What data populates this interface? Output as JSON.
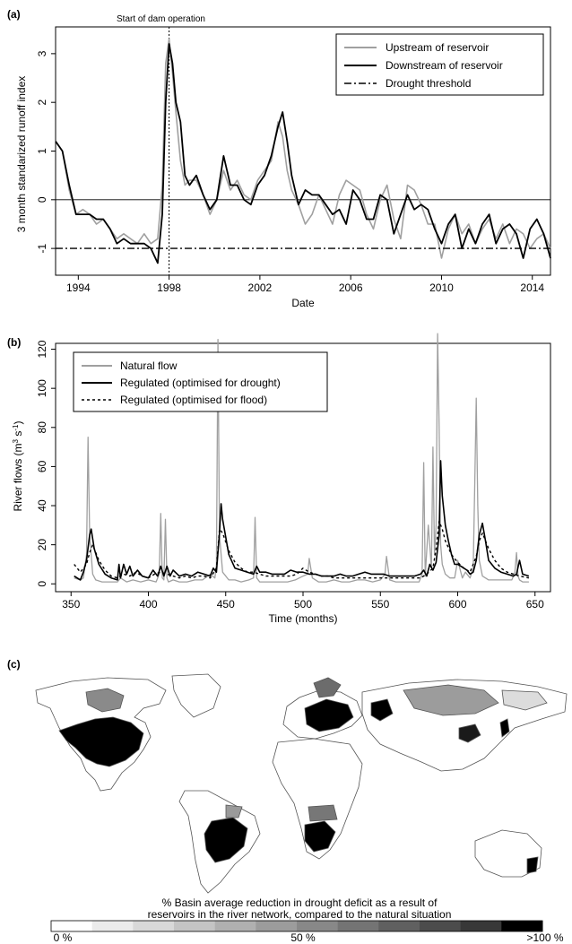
{
  "chart_data": [
    {
      "panel_label": "(a)",
      "type": "line",
      "annotation": "Start of dam operation",
      "annotation_x": 1998.0,
      "xlabel": "Date",
      "ylabel": "3 month standarized  runoff index",
      "xlim": [
        1993.0,
        2014.8
      ],
      "ylim": [
        -1.55,
        3.55
      ],
      "x_ticks": [
        1994,
        1998,
        2002,
        2006,
        2010,
        2014
      ],
      "y_ticks": [
        -1,
        0,
        1,
        2,
        3
      ],
      "grid": false,
      "legend_position": "top-right",
      "hline": 0,
      "threshold": -1,
      "series": [
        {
          "name": "Upstream of reservoir",
          "color": "#a0a0a0",
          "x": [
            1993.0,
            1993.3,
            1993.6,
            1993.9,
            1994.2,
            1994.5,
            1994.8,
            1995.1,
            1995.4,
            1995.7,
            1996.0,
            1996.3,
            1996.6,
            1996.9,
            1997.2,
            1997.5,
            1997.7,
            1997.85,
            1998.0,
            1998.15,
            1998.3,
            1998.5,
            1998.7,
            1998.9,
            1999.2,
            1999.5,
            1999.8,
            2000.1,
            2000.4,
            2000.7,
            2001.0,
            2001.3,
            2001.6,
            2001.9,
            2002.2,
            2002.5,
            2002.8,
            2003.0,
            2003.2,
            2003.4,
            2003.7,
            2004.0,
            2004.3,
            2004.6,
            2004.9,
            2005.2,
            2005.5,
            2005.8,
            2006.1,
            2006.4,
            2006.7,
            2007.0,
            2007.3,
            2007.6,
            2007.9,
            2008.2,
            2008.5,
            2008.8,
            2009.1,
            2009.4,
            2009.7,
            2010.0,
            2010.3,
            2010.6,
            2010.9,
            2011.2,
            2011.5,
            2011.8,
            2012.1,
            2012.4,
            2012.7,
            2013.0,
            2013.3,
            2013.6,
            2013.9,
            2014.2,
            2014.5,
            2014.8
          ],
          "values": [
            1.2,
            1.0,
            0.2,
            -0.3,
            -0.2,
            -0.3,
            -0.5,
            -0.4,
            -0.6,
            -0.8,
            -0.7,
            -0.8,
            -0.9,
            -0.7,
            -0.9,
            -0.8,
            0.3,
            2.8,
            3.3,
            2.6,
            1.8,
            0.8,
            0.3,
            0.4,
            0.4,
            0.1,
            -0.3,
            0.0,
            0.6,
            0.2,
            0.4,
            0.1,
            0.0,
            0.4,
            0.6,
            0.8,
            1.6,
            1.3,
            0.6,
            0.2,
            -0.1,
            -0.5,
            -0.3,
            0.1,
            -0.2,
            -0.5,
            0.1,
            0.4,
            0.3,
            0.2,
            -0.3,
            -0.6,
            0.0,
            0.3,
            -0.4,
            -0.8,
            0.3,
            0.2,
            -0.1,
            -0.5,
            -0.5,
            -1.2,
            -0.6,
            -0.3,
            -0.7,
            -0.5,
            -0.9,
            -0.6,
            -0.4,
            -0.8,
            -0.5,
            -0.9,
            -0.6,
            -0.7,
            -1.0,
            -0.8,
            -0.7,
            -1.0
          ]
        },
        {
          "name": "Downstream of reservoir",
          "color": "#000000",
          "x": [
            1993.0,
            1993.3,
            1993.6,
            1993.9,
            1994.2,
            1994.5,
            1994.8,
            1995.1,
            1995.4,
            1995.7,
            1996.0,
            1996.3,
            1996.6,
            1996.9,
            1997.2,
            1997.5,
            1997.7,
            1997.85,
            1998.0,
            1998.15,
            1998.3,
            1998.5,
            1998.7,
            1998.9,
            1999.2,
            1999.5,
            1999.8,
            2000.1,
            2000.4,
            2000.7,
            2001.0,
            2001.3,
            2001.6,
            2001.9,
            2002.2,
            2002.5,
            2002.8,
            2003.0,
            2003.2,
            2003.4,
            2003.7,
            2004.0,
            2004.3,
            2004.6,
            2004.9,
            2005.2,
            2005.5,
            2005.8,
            2006.1,
            2006.4,
            2006.7,
            2007.0,
            2007.3,
            2007.6,
            2007.9,
            2008.2,
            2008.5,
            2008.8,
            2009.1,
            2009.4,
            2009.7,
            2010.0,
            2010.3,
            2010.6,
            2010.9,
            2011.2,
            2011.5,
            2011.8,
            2012.1,
            2012.4,
            2012.7,
            2013.0,
            2013.3,
            2013.6,
            2013.9,
            2014.2,
            2014.5,
            2014.8
          ],
          "values": [
            1.2,
            1.0,
            0.3,
            -0.3,
            -0.3,
            -0.3,
            -0.4,
            -0.4,
            -0.6,
            -0.9,
            -0.8,
            -0.9,
            -0.9,
            -0.9,
            -1.0,
            -1.3,
            -0.3,
            2.0,
            3.2,
            2.8,
            2.0,
            1.6,
            0.5,
            0.3,
            0.5,
            0.1,
            -0.2,
            0.0,
            0.9,
            0.3,
            0.3,
            0.0,
            -0.1,
            0.3,
            0.5,
            0.9,
            1.5,
            1.8,
            1.2,
            0.5,
            -0.1,
            0.2,
            0.1,
            0.1,
            -0.1,
            -0.3,
            -0.2,
            -0.5,
            0.2,
            0.0,
            -0.4,
            -0.4,
            0.1,
            0.0,
            -0.7,
            -0.3,
            0.1,
            -0.2,
            -0.1,
            -0.2,
            -0.6,
            -0.9,
            -0.5,
            -0.3,
            -1.0,
            -0.6,
            -0.9,
            -0.5,
            -0.3,
            -0.9,
            -0.6,
            -0.5,
            -0.7,
            -1.2,
            -0.6,
            -0.4,
            -0.7,
            -1.2
          ]
        },
        {
          "name": "Drought threshold",
          "color": "#000000",
          "x": [
            1993.0,
            2014.8
          ],
          "values": [
            -1,
            -1
          ]
        }
      ]
    },
    {
      "panel_label": "(b)",
      "type": "line",
      "xlabel": "Time (months)",
      "ylabel_main": "River flows (m",
      "ylabel_sup1": "3",
      "ylabel_mid": " s",
      "ylabel_sup2": "-1",
      "ylabel_end": ")",
      "xlim": [
        340,
        660
      ],
      "ylim": [
        -4,
        123
      ],
      "x_ticks": [
        350,
        400,
        450,
        500,
        550,
        600,
        650
      ],
      "y_ticks": [
        0,
        20,
        40,
        60,
        80,
        100,
        120
      ],
      "grid": false,
      "legend_position": "top-left",
      "series": [
        {
          "name": "Natural flow",
          "color": "#a0a0a0",
          "x": [
            352,
            356,
            358,
            360,
            361,
            362,
            364,
            366,
            370,
            375,
            380,
            382,
            384,
            386,
            390,
            395,
            400,
            405,
            407,
            408,
            409,
            410,
            411,
            412,
            413,
            416,
            420,
            425,
            430,
            435,
            440,
            443,
            444,
            445,
            446,
            448,
            452,
            456,
            460,
            465,
            468,
            469,
            470,
            472,
            476,
            480,
            485,
            490,
            495,
            500,
            503,
            504,
            506,
            510,
            515,
            520,
            525,
            530,
            535,
            540,
            545,
            550,
            553,
            554,
            556,
            560,
            565,
            570,
            575,
            577,
            578,
            579,
            581,
            583,
            584,
            585,
            586,
            587,
            588,
            589,
            590,
            592,
            595,
            598,
            600,
            603,
            605,
            608,
            610,
            611,
            612,
            613,
            614,
            616,
            620,
            625,
            630,
            635,
            637,
            638,
            639,
            640,
            642,
            646
          ],
          "values": [
            3,
            2,
            3,
            15,
            75,
            25,
            5,
            2,
            1,
            1,
            1,
            3,
            2,
            1,
            2,
            1,
            2,
            1,
            5,
            36,
            3,
            2,
            33,
            3,
            1,
            2,
            1,
            1,
            2,
            2,
            5,
            3,
            10,
            125,
            25,
            6,
            2,
            2,
            1,
            2,
            3,
            34,
            3,
            1,
            1,
            1,
            1,
            1,
            2,
            4,
            5,
            13,
            3,
            1,
            1,
            2,
            1,
            1,
            2,
            2,
            1,
            2,
            5,
            14,
            2,
            1,
            1,
            1,
            1,
            5,
            62,
            4,
            30,
            8,
            70,
            15,
            30,
            128,
            80,
            20,
            10,
            5,
            3,
            3,
            12,
            3,
            6,
            3,
            8,
            50,
            95,
            40,
            12,
            4,
            2,
            2,
            2,
            2,
            6,
            16,
            4,
            2,
            1,
            1
          ]
        },
        {
          "name": "Regulated (optimised for drought)",
          "color": "#000000",
          "x": [
            352,
            356,
            358,
            360,
            362,
            363,
            365,
            368,
            372,
            376,
            380,
            381,
            382,
            384,
            386,
            388,
            390,
            393,
            396,
            400,
            403,
            406,
            408,
            410,
            412,
            414,
            416,
            420,
            424,
            428,
            432,
            436,
            440,
            442,
            444,
            446,
            447,
            448,
            452,
            456,
            460,
            464,
            468,
            470,
            472,
            476,
            480,
            484,
            488,
            492,
            496,
            500,
            504,
            508,
            512,
            516,
            520,
            524,
            528,
            532,
            536,
            540,
            544,
            548,
            552,
            556,
            560,
            564,
            568,
            572,
            576,
            578,
            580,
            582,
            584,
            586,
            588,
            589,
            590,
            592,
            594,
            596,
            598,
            600,
            602,
            604,
            606,
            608,
            610,
            612,
            614,
            616,
            618,
            620,
            624,
            628,
            632,
            636,
            638,
            640,
            642,
            646
          ],
          "values": [
            4,
            2,
            6,
            12,
            25,
            28,
            18,
            10,
            5,
            3,
            2,
            10,
            3,
            10,
            5,
            9,
            4,
            7,
            4,
            3,
            7,
            4,
            9,
            4,
            9,
            4,
            7,
            4,
            5,
            4,
            6,
            5,
            4,
            8,
            6,
            26,
            41,
            33,
            15,
            8,
            7,
            6,
            5,
            9,
            6,
            6,
            5,
            5,
            5,
            7,
            6,
            6,
            5,
            5,
            4,
            4,
            4,
            5,
            4,
            4,
            5,
            6,
            5,
            5,
            5,
            4,
            4,
            4,
            4,
            4,
            5,
            7,
            4,
            10,
            7,
            11,
            25,
            63,
            45,
            30,
            22,
            15,
            10,
            10,
            9,
            8,
            7,
            5,
            6,
            12,
            25,
            31,
            22,
            12,
            8,
            6,
            5,
            4,
            5,
            12,
            5,
            4
          ]
        },
        {
          "name": "Regulated (optimised for flood)",
          "color": "#000000",
          "dash": "3,3",
          "x": [
            352,
            356,
            360,
            362,
            364,
            368,
            372,
            376,
            380,
            384,
            388,
            392,
            396,
            400,
            404,
            408,
            412,
            416,
            420,
            424,
            428,
            432,
            436,
            440,
            444,
            446,
            448,
            452,
            456,
            460,
            464,
            468,
            472,
            476,
            480,
            484,
            488,
            492,
            496,
            500,
            504,
            508,
            512,
            516,
            520,
            524,
            528,
            532,
            536,
            540,
            544,
            548,
            552,
            556,
            560,
            564,
            568,
            572,
            576,
            580,
            584,
            586,
            588,
            590,
            592,
            596,
            600,
            604,
            608,
            612,
            614,
            616,
            620,
            624,
            628,
            632,
            636,
            640,
            646
          ],
          "values": [
            10,
            6,
            10,
            16,
            20,
            12,
            7,
            4,
            3,
            5,
            4,
            6,
            4,
            3,
            5,
            6,
            5,
            4,
            3,
            4,
            3,
            4,
            4,
            3,
            8,
            28,
            26,
            17,
            11,
            8,
            6,
            6,
            5,
            4,
            4,
            4,
            4,
            4,
            5,
            8,
            6,
            5,
            4,
            4,
            3,
            3,
            3,
            3,
            3,
            3,
            3,
            3,
            3,
            3,
            3,
            3,
            3,
            3,
            3,
            5,
            8,
            18,
            32,
            28,
            22,
            15,
            11,
            8,
            6,
            14,
            22,
            26,
            18,
            12,
            8,
            6,
            5,
            4,
            3
          ]
        }
      ]
    }
  ],
  "panel_c": {
    "label": "(c)",
    "caption_line1": "% Basin average reduction in drought deficit as a result of",
    "caption_line2": "reservoirs in the river network, compared to the natural situation",
    "scale_left": "0 %",
    "scale_mid": "50 %",
    "scale_right": ">100 %",
    "scale_colors": [
      "#ffffff",
      "#ebebeb",
      "#d8d8d8",
      "#c4c4c4",
      "#b0b0b0",
      "#9c9c9c",
      "#888888",
      "#747474",
      "#606060",
      "#4c4c4c",
      "#383838",
      "#000000"
    ]
  }
}
